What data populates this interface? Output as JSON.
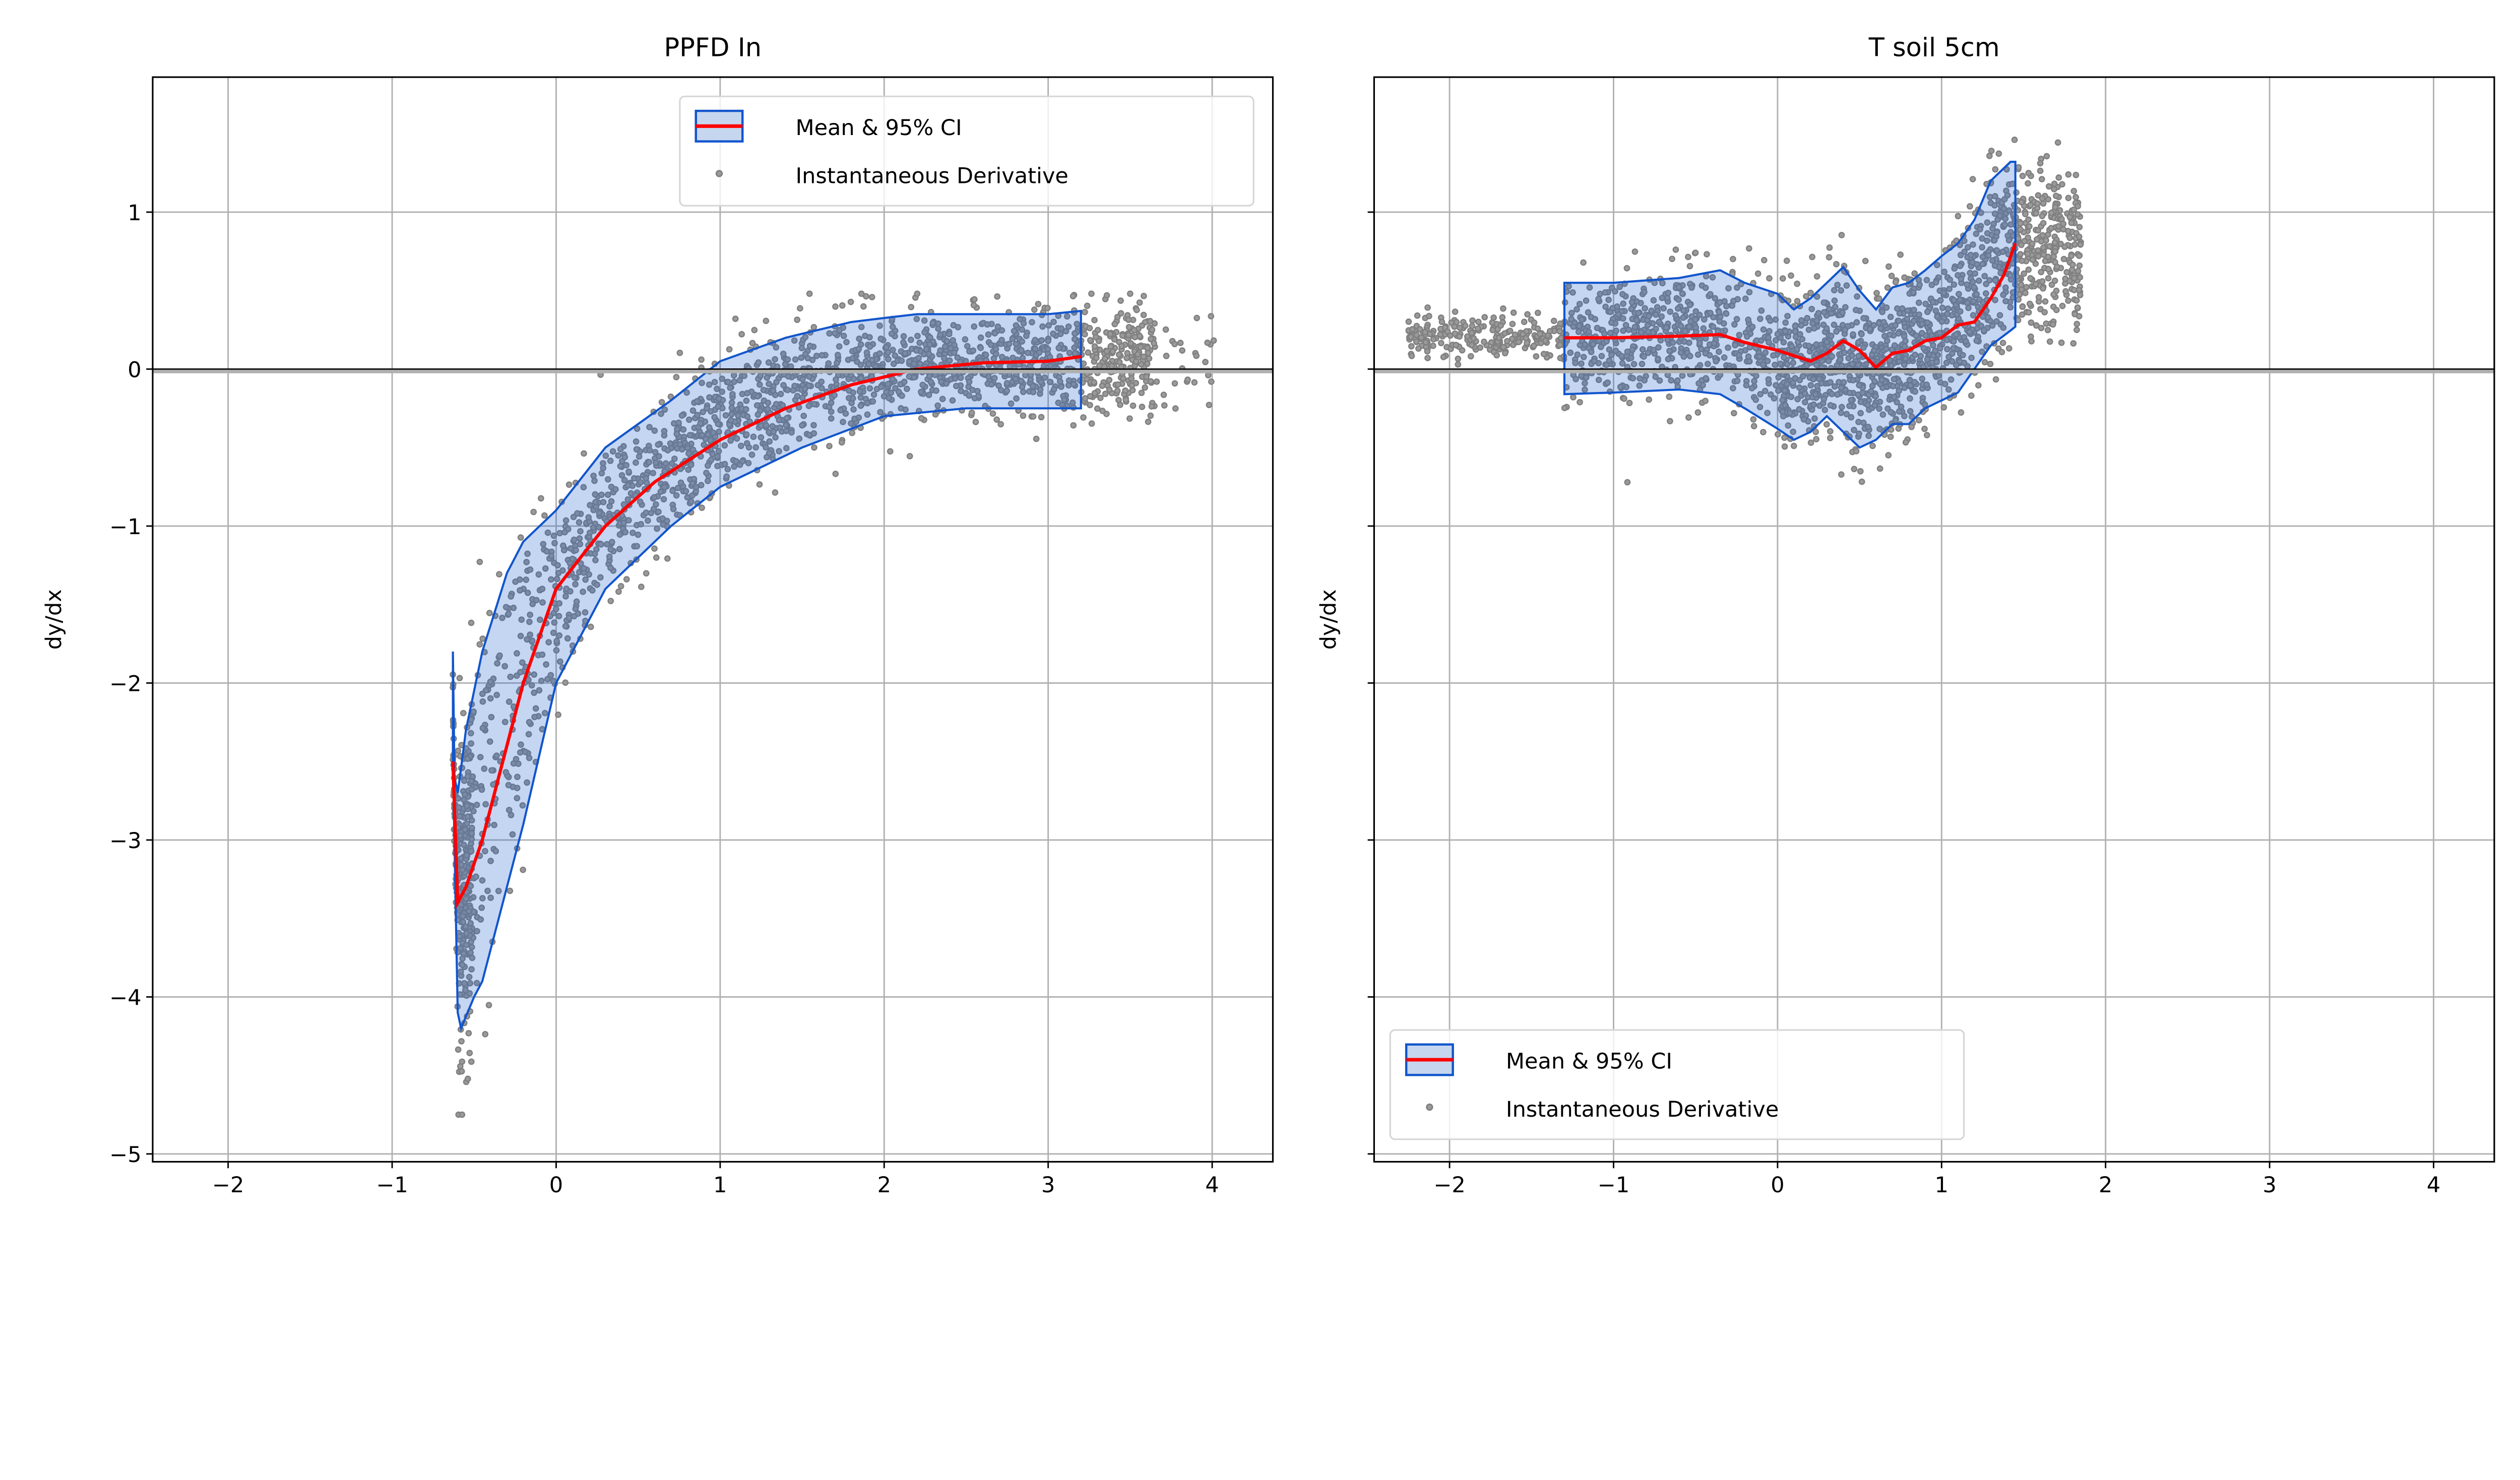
{
  "chart_data": [
    {
      "type": "line",
      "title": "PPFD In",
      "xlabel": "",
      "ylabel": "dy/dx",
      "xlim": [
        -2.46,
        4.37
      ],
      "ylim": [
        -5.05,
        1.86
      ],
      "xticks": [
        "−2",
        "−1",
        "0",
        "1",
        "2",
        "3",
        "4"
      ],
      "xtick_values": [
        -2,
        -1,
        0,
        1,
        2,
        3,
        4
      ],
      "yticks": [
        "1",
        "0",
        "−1",
        "−2",
        "−3",
        "−4",
        "−5"
      ],
      "ytick_values": [
        1,
        0,
        -1,
        -2,
        -3,
        -4,
        -5
      ],
      "grid": true,
      "hline": 0,
      "legend": {
        "placement": "upper-right",
        "entries": [
          "Mean & 95% CI",
          "Instantaneous Derivative"
        ]
      },
      "mean": {
        "x": [
          -0.63,
          -0.6,
          -0.55,
          -0.45,
          -0.3,
          -0.2,
          -0.1,
          0,
          0.15,
          0.3,
          0.6,
          1.0,
          1.4,
          1.8,
          2.2,
          2.6,
          3.0,
          3.2
        ],
        "y": [
          -2.5,
          -3.4,
          -3.3,
          -3.0,
          -2.4,
          -2.0,
          -1.7,
          -1.4,
          -1.2,
          -1.0,
          -0.72,
          -0.45,
          -0.25,
          -0.1,
          0.0,
          0.04,
          0.05,
          0.08
        ]
      },
      "ci_upper": {
        "x": [
          -0.63,
          -0.62,
          -0.6,
          -0.55,
          -0.45,
          -0.3,
          -0.2,
          0,
          0.15,
          0.3,
          0.7,
          1.0,
          1.4,
          1.8,
          2.2,
          2.6,
          3.0,
          3.2
        ],
        "y": [
          -1.8,
          -2.6,
          -2.7,
          -2.3,
          -1.8,
          -1.3,
          -1.1,
          -0.9,
          -0.7,
          -0.5,
          -0.2,
          0.05,
          0.2,
          0.3,
          0.35,
          0.35,
          0.35,
          0.37
        ]
      },
      "ci_lower": {
        "x": [
          -0.63,
          -0.6,
          -0.58,
          -0.5,
          -0.45,
          -0.3,
          -0.2,
          0,
          0.15,
          0.3,
          0.7,
          1.0,
          1.5,
          2.0,
          2.5,
          3.0,
          3.2
        ],
        "y": [
          -2.5,
          -4.1,
          -4.2,
          -4.0,
          -3.9,
          -3.3,
          -2.9,
          -2.0,
          -1.7,
          -1.4,
          -1.0,
          -0.75,
          -0.5,
          -0.3,
          -0.25,
          -0.25,
          -0.25
        ]
      },
      "scatter_extent": {
        "x": [
          -0.63,
          4.05
        ],
        "y": [
          -4.75,
          0.48
        ]
      }
    },
    {
      "type": "line",
      "title": "T soil 5cm",
      "xlabel": "",
      "ylabel": "dy/dx",
      "xlim": [
        -2.46,
        4.37
      ],
      "ylim": [
        -5.05,
        1.86
      ],
      "xticks": [
        "−2",
        "−1",
        "0",
        "1",
        "2",
        "3",
        "4"
      ],
      "xtick_values": [
        -2,
        -1,
        0,
        1,
        2,
        3,
        4
      ],
      "grid": true,
      "hline": 0,
      "legend": {
        "placement": "lower-left",
        "entries": [
          "Mean & 95% CI",
          "Instantaneous Derivative"
        ]
      },
      "mean": {
        "x": [
          -1.3,
          -1.0,
          -0.6,
          -0.35,
          -0.2,
          0.0,
          0.2,
          0.3,
          0.4,
          0.5,
          0.6,
          0.7,
          0.8,
          0.9,
          1.0,
          1.1,
          1.2,
          1.3,
          1.38,
          1.45
        ],
        "y": [
          0.2,
          0.2,
          0.21,
          0.22,
          0.17,
          0.12,
          0.05,
          0.1,
          0.18,
          0.12,
          0.01,
          0.1,
          0.12,
          0.18,
          0.2,
          0.28,
          0.3,
          0.45,
          0.6,
          0.8
        ]
      },
      "ci_upper": {
        "x": [
          -1.3,
          -1.0,
          -0.6,
          -0.35,
          -0.2,
          0.0,
          0.1,
          0.2,
          0.3,
          0.4,
          0.5,
          0.6,
          0.7,
          0.8,
          0.9,
          1.0,
          1.1,
          1.2,
          1.3,
          1.42,
          1.45
        ],
        "y": [
          0.55,
          0.55,
          0.58,
          0.63,
          0.55,
          0.48,
          0.38,
          0.45,
          0.55,
          0.65,
          0.5,
          0.38,
          0.52,
          0.55,
          0.63,
          0.72,
          0.8,
          0.95,
          1.2,
          1.32,
          1.32
        ]
      },
      "ci_lower": {
        "x": [
          -1.3,
          -1.0,
          -0.6,
          -0.35,
          -0.2,
          0.0,
          0.1,
          0.2,
          0.3,
          0.4,
          0.5,
          0.6,
          0.7,
          0.8,
          0.9,
          1.0,
          1.1,
          1.2,
          1.3,
          1.45
        ],
        "y": [
          -0.16,
          -0.15,
          -0.13,
          -0.16,
          -0.25,
          -0.38,
          -0.45,
          -0.4,
          -0.3,
          -0.4,
          -0.5,
          -0.45,
          -0.35,
          -0.35,
          -0.25,
          -0.2,
          -0.15,
          0.0,
          0.15,
          0.27
        ]
      },
      "scatter_extent": {
        "x": [
          -2.25,
          1.85
        ],
        "y": [
          -0.82,
          1.53
        ]
      }
    }
  ],
  "colors": {
    "mean": "#ff0000",
    "ci_edge": "#1155cc",
    "ci_fill": "#1f5fd0",
    "scatter": "#808080",
    "grid": "#b0b0b0"
  }
}
